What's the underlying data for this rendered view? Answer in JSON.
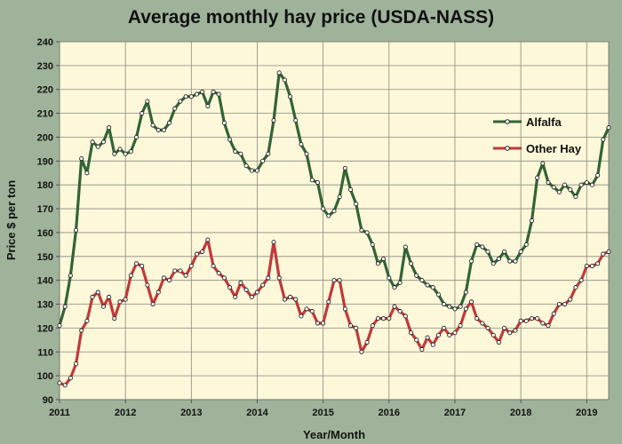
{
  "chart_data": {
    "type": "line",
    "title": "Average monthly hay price (USDA-NASS)",
    "xlabel": "Year/Month",
    "ylabel": "Price $ per ton",
    "ylim": [
      90,
      240
    ],
    "yticks": [
      90,
      100,
      110,
      120,
      130,
      140,
      150,
      160,
      170,
      180,
      190,
      200,
      210,
      220,
      230,
      240
    ],
    "xlim": [
      "2011-01",
      "2019-05"
    ],
    "xticks": [
      "2011",
      "2012",
      "2013",
      "2014",
      "2015",
      "2016",
      "2017",
      "2018",
      "2019"
    ],
    "grid": true,
    "legend_position": "right",
    "background_color": "#fdf8d9",
    "series": [
      {
        "name": "Alfalfa",
        "color": "#336338",
        "values": [
          121,
          129,
          142,
          161,
          191,
          185,
          198,
          196,
          198,
          204,
          193,
          195,
          193,
          194,
          200,
          210,
          215,
          205,
          203,
          203,
          206,
          212,
          215,
          217,
          217,
          218,
          219,
          213,
          219,
          218,
          206,
          199,
          194,
          193,
          188,
          186,
          186,
          190,
          193,
          207,
          227,
          224,
          217,
          207,
          197,
          193,
          182,
          181,
          170,
          167,
          169,
          175,
          187,
          178,
          172,
          161,
          160,
          155,
          147,
          149,
          141,
          137,
          139,
          154,
          147,
          142,
          140,
          138,
          137,
          134,
          130,
          129,
          128,
          129,
          135,
          148,
          155,
          154,
          152,
          147,
          149,
          152,
          148,
          148,
          152,
          155,
          165,
          183,
          189,
          181,
          179,
          177,
          180,
          178,
          175,
          180,
          181,
          180,
          184,
          199,
          204
        ]
      },
      {
        "name": "Other Hay",
        "color": "#c0393b",
        "values": [
          97,
          96,
          99,
          105,
          119,
          123,
          133,
          135,
          129,
          133,
          124,
          131,
          132,
          142,
          147,
          146,
          138,
          130,
          135,
          141,
          140,
          144,
          144,
          142,
          146,
          151,
          152,
          157,
          146,
          143,
          141,
          137,
          133,
          139,
          136,
          133,
          135,
          138,
          141,
          156,
          141,
          132,
          133,
          132,
          125,
          128,
          127,
          122,
          122,
          131,
          140,
          140,
          128,
          121,
          120,
          110,
          114,
          121,
          124,
          124,
          124,
          129,
          127,
          125,
          118,
          115,
          111,
          116,
          113,
          117,
          120,
          117,
          118,
          121,
          128,
          131,
          124,
          122,
          120,
          117,
          114,
          120,
          118,
          119,
          123,
          123,
          124,
          124,
          122,
          121,
          126,
          130,
          130,
          132,
          137,
          140,
          146,
          146,
          147,
          151,
          152
        ]
      }
    ]
  }
}
